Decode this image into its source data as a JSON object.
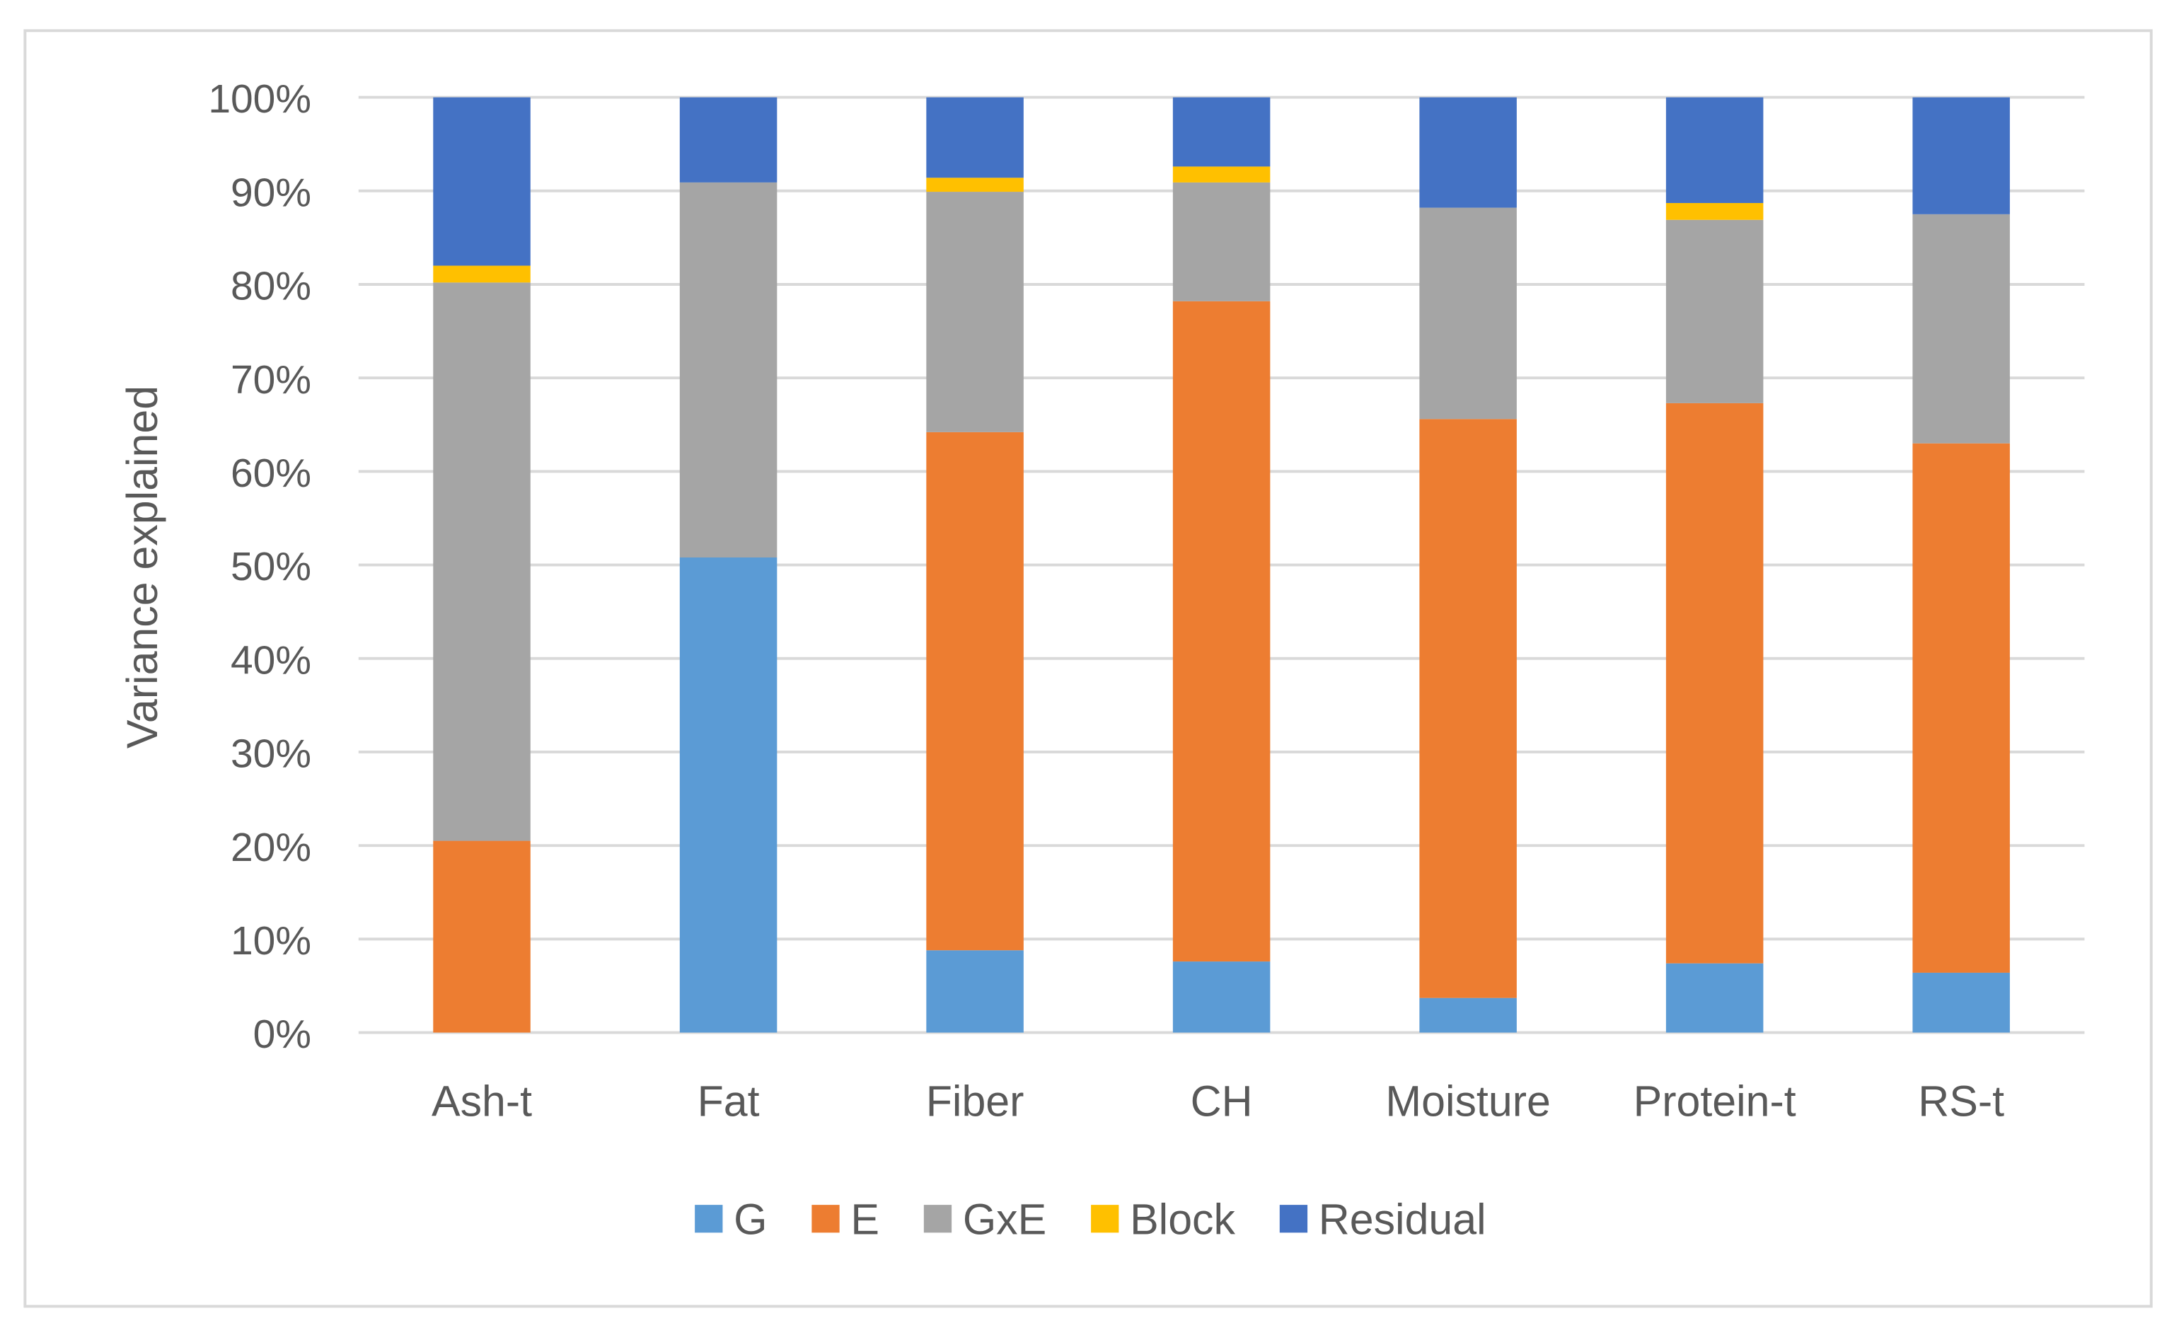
{
  "chart_data": {
    "type": "bar",
    "stacked": "percent",
    "title": "",
    "xlabel": "",
    "ylabel": "Variance explained",
    "ylim": [
      0,
      100
    ],
    "yticks": [
      "0%",
      "10%",
      "20%",
      "30%",
      "40%",
      "50%",
      "60%",
      "70%",
      "80%",
      "90%",
      "100%"
    ],
    "grid": true,
    "legend_position": "bottom",
    "categories": [
      "Ash-t",
      "Fat",
      "Fiber",
      "CH",
      "Moisture",
      "Protein-t",
      "RS-t"
    ],
    "series": [
      {
        "name": "G",
        "color": "#5B9BD5",
        "values": [
          0,
          50.8,
          8.8,
          7.6,
          3.7,
          7.4,
          6.4
        ]
      },
      {
        "name": "E",
        "color": "#ED7D31",
        "values": [
          20.5,
          0,
          55.4,
          70.6,
          61.9,
          59.9,
          56.6
        ]
      },
      {
        "name": "GxE",
        "color": "#A5A5A5",
        "values": [
          59.7,
          40.1,
          25.7,
          12.7,
          22.6,
          19.6,
          24.5
        ]
      },
      {
        "name": "Block",
        "color": "#FFC000",
        "values": [
          1.8,
          0,
          1.5,
          1.7,
          0,
          1.8,
          0
        ]
      },
      {
        "name": "Residual",
        "color": "#4472C4",
        "values": [
          18.0,
          9.1,
          8.6,
          7.4,
          11.8,
          11.3,
          12.5
        ]
      }
    ]
  }
}
